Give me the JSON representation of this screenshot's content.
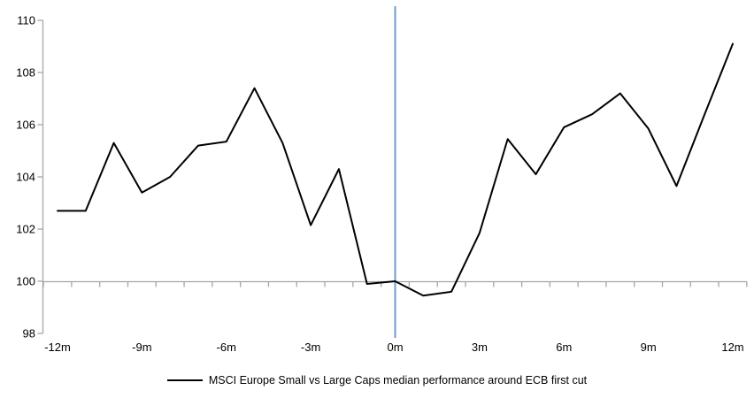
{
  "chart_data": {
    "type": "line",
    "title": "",
    "x": [
      -12,
      -11,
      -10,
      -9,
      -8,
      -7,
      -6,
      -5,
      -4,
      -3,
      -2,
      -1,
      0,
      1,
      2,
      3,
      4,
      5,
      6,
      7,
      8,
      9,
      10,
      11,
      12
    ],
    "series": [
      {
        "name": "MSCI Europe Small vs Large Caps median performance around ECB first cut",
        "color": "#000000",
        "values": [
          102.7,
          102.7,
          105.3,
          103.4,
          104.0,
          105.2,
          105.35,
          107.4,
          105.3,
          102.15,
          104.3,
          99.9,
          100.0,
          99.45,
          99.6,
          101.85,
          105.45,
          104.1,
          105.9,
          106.4,
          107.2,
          105.85,
          103.65,
          106.4,
          109.1
        ]
      }
    ],
    "xlabel": "",
    "ylabel": "",
    "ylim": [
      98,
      110
    ],
    "yticks": [
      110,
      108,
      106,
      104,
      102,
      100,
      98
    ],
    "xtick_months": [
      -12,
      -9,
      -6,
      -3,
      0,
      3,
      6,
      9,
      12
    ],
    "xtick_labels": [
      "-12m",
      "-9m",
      "-6m",
      "-3m",
      "0m",
      "3m",
      "6m",
      "9m",
      "12m"
    ],
    "baseline_value": 100,
    "event_line": {
      "x_month": 0,
      "color": "#6E9BCD"
    },
    "grid": "off",
    "legend_position": "bottom-center",
    "axis_color": "#A6A6A6",
    "tick_label_color": "#000000",
    "legend": {
      "label": "MSCI Europe Small vs Large Caps median performance around ECB first cut"
    }
  }
}
